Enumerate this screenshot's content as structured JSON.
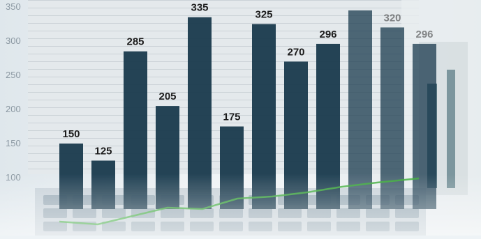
{
  "chart_data": {
    "type": "bar",
    "title": "",
    "xlabel": "",
    "ylabel": "",
    "y_tick_labels": [
      "100",
      "150",
      "200",
      "250",
      "300",
      "350"
    ],
    "ylim": [
      100,
      350
    ],
    "data_labels": [
      "150",
      "125",
      "285",
      "205",
      "335",
      "175",
      "325",
      "270",
      "296",
      "",
      "320",
      "296"
    ],
    "values": [
      150,
      125,
      285,
      205,
      335,
      175,
      325,
      270,
      296,
      345,
      320,
      296
    ],
    "grid": true
  },
  "colors": {
    "bar": "#193a4d",
    "line": "#3fae3c",
    "background": "#eef3f6",
    "screen": "#e9ecee"
  }
}
